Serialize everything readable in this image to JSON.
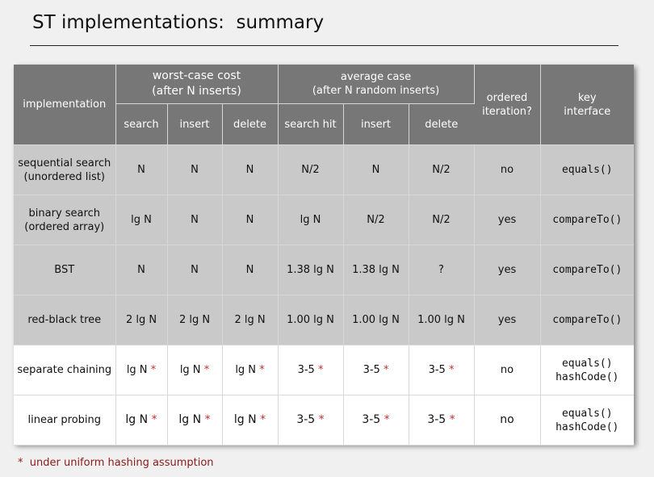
{
  "title": "ST implementations:  summary",
  "footnote": "*  under uniform hashing assumption",
  "table": {
    "header": {
      "implementation": "implementation",
      "worst_case_line1": "worst-case cost",
      "worst_case_line2": "(after N inserts)",
      "average_case_line1": "average case",
      "average_case_line2": "(after N random inserts)",
      "ordered_line1": "ordered",
      "ordered_line2": "iteration?",
      "key_line1": "key",
      "key_line2": "interface",
      "search": "search",
      "insert": "insert",
      "delete": "delete",
      "search_hit": "search hit",
      "avg_insert": "insert",
      "avg_delete": "delete"
    },
    "rows": [
      {
        "impl1": "sequential search",
        "impl2": "(unordered list)",
        "ws": "N",
        "wi": "N",
        "wd": "N",
        "as": "N/2",
        "ai": "N",
        "ad": "N/2",
        "ordered": "no",
        "key1": "equals()"
      },
      {
        "impl1": "binary search",
        "impl2": "(ordered array)",
        "ws": "lg N",
        "wi": "N",
        "wd": "N",
        "as": "lg N",
        "ai": "N/2",
        "ad": "N/2",
        "ordered": "yes",
        "key1": "compareTo()"
      },
      {
        "impl1": "BST",
        "ws": "N",
        "wi": "N",
        "wd": "N",
        "as": "1.38 lg N",
        "ai": "1.38 lg N",
        "ad": "?",
        "ordered": "yes",
        "key1": "compareTo()"
      },
      {
        "impl1": "red-black tree",
        "ws": "2 lg N",
        "wi": "2 lg N",
        "wd": "2 lg N",
        "as": "1.00 lg N",
        "ai": "1.00 lg N",
        "ad": "1.00 lg N",
        "ordered": "yes",
        "key1": "compareTo()"
      },
      {
        "impl1": "separate chaining",
        "ws": "lg N",
        "wi": "lg N",
        "wd": "lg N",
        "as": "3-5",
        "ai": "3-5",
        "ad": "3-5",
        "ordered": "no",
        "key1": "equals()",
        "key2": "hashCode()",
        "star": "*"
      },
      {
        "impl1": "linear probing",
        "ws": "lg N",
        "wi": "lg N",
        "wd": "lg N",
        "as": "3-5",
        "ai": "3-5",
        "ad": "3-5",
        "ordered": "no",
        "key1": "equals()",
        "key2": "hashCode()",
        "star": "*"
      }
    ]
  }
}
